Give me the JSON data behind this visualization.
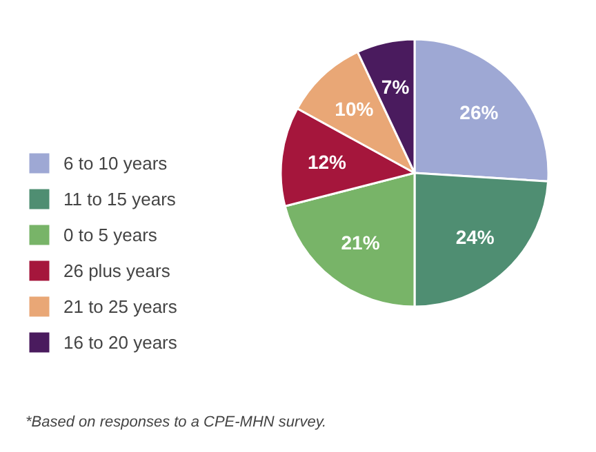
{
  "chart_data": {
    "type": "pie",
    "categories": [
      "6 to 10 years",
      "11 to 15 years",
      "0 to 5 years",
      "26 plus years",
      "21 to 25 years",
      "16 to 20 years"
    ],
    "values": [
      26,
      24,
      21,
      12,
      10,
      7
    ],
    "value_labels": [
      "26%",
      "24%",
      "21%",
      "12%",
      "10%",
      "7%"
    ],
    "colors": [
      "#9ea8d4",
      "#4f8e72",
      "#78b468",
      "#a5163c",
      "#e9a776",
      "#4a1b5e"
    ],
    "legend": "left",
    "annotations": [
      "*Based on responses to a CPE-MHN survey."
    ]
  }
}
